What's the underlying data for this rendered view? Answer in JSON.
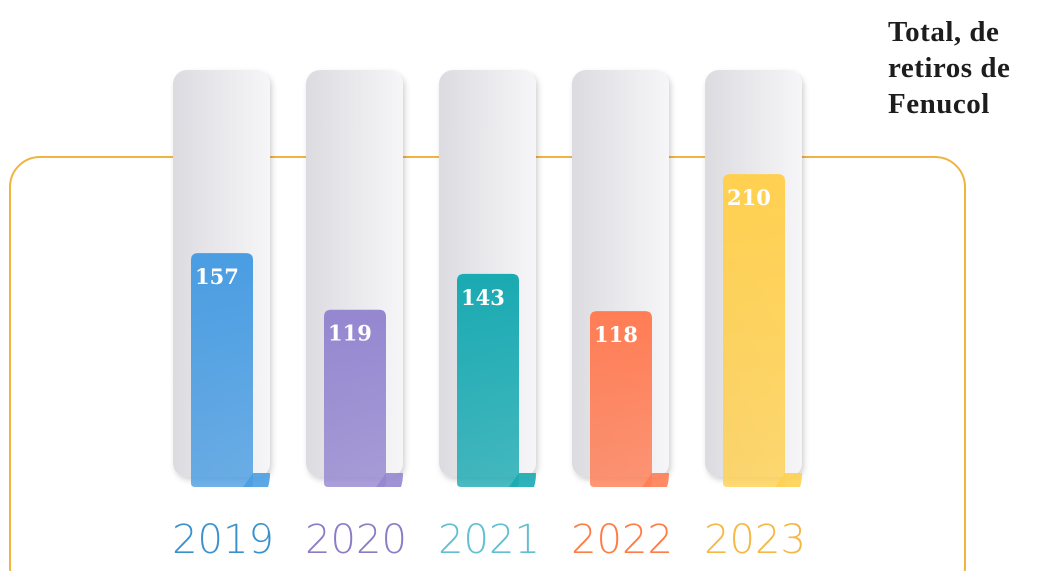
{
  "chart_data": {
    "type": "bar",
    "title": "Total, de retiros de Fenucol",
    "categories": [
      "2019",
      "2020",
      "2021",
      "2022",
      "2023"
    ],
    "values": [
      157,
      119,
      143,
      118,
      210
    ],
    "colors": [
      "#4a9de2",
      "#9587d0",
      "#1aaab2",
      "#ff7d55",
      "#ffd050"
    ],
    "label_colors": [
      "#3b91cc",
      "#8c7cc6",
      "#62bfd2",
      "#ff7c44",
      "#f5b845"
    ]
  }
}
